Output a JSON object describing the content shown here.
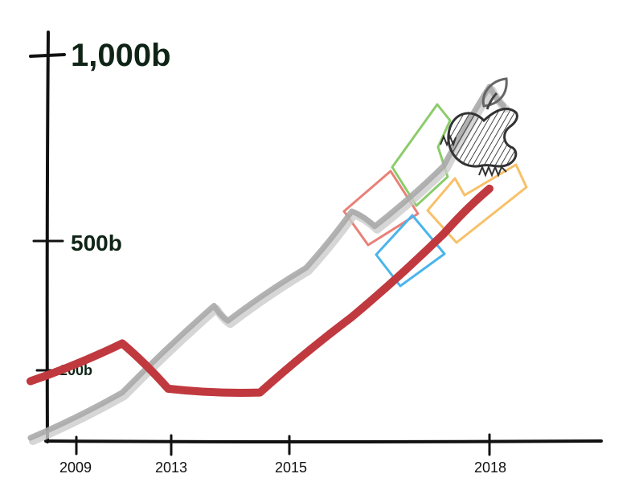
{
  "chart_data": {
    "type": "line",
    "title": "",
    "xlabel": "",
    "ylabel": "",
    "x_ticks": [
      "2009",
      "2013",
      "2015",
      "2018"
    ],
    "y_ticks": [
      "200b",
      "500b",
      "1,000b"
    ],
    "series": [
      {
        "color": "#aaaaaa",
        "points": [
          {
            "year": "2008",
            "value": 0
          },
          {
            "year": "2010",
            "value": 120
          },
          {
            "year": "2012",
            "value": 350
          },
          {
            "year": "2012.3",
            "value": 310
          },
          {
            "year": "2014",
            "value": 450
          },
          {
            "year": "2015",
            "value": 600
          },
          {
            "year": "2015.5",
            "value": 560
          },
          {
            "year": "2017",
            "value": 720
          },
          {
            "year": "2018",
            "value": 930
          },
          {
            "year": "2018.3",
            "value": 880
          }
        ]
      },
      {
        "color": "#c0393f",
        "points": [
          {
            "year": "2008",
            "value": 150
          },
          {
            "year": "2010",
            "value": 250
          },
          {
            "year": "2011",
            "value": 130
          },
          {
            "year": "2013",
            "value": 120
          },
          {
            "year": "2015",
            "value": 320
          },
          {
            "year": "2017",
            "value": 540
          },
          {
            "year": "2018",
            "value": 660
          }
        ]
      }
    ],
    "decorations": {
      "squares": [
        {
          "color": "#e98078"
        },
        {
          "color": "#8ccc6b"
        },
        {
          "color": "#4bb5eb"
        },
        {
          "color": "#f8c069"
        }
      ],
      "logo": "apple-logo-sketch"
    },
    "colors": {
      "axis": "#111111",
      "label_dark": "#0f2417"
    }
  }
}
